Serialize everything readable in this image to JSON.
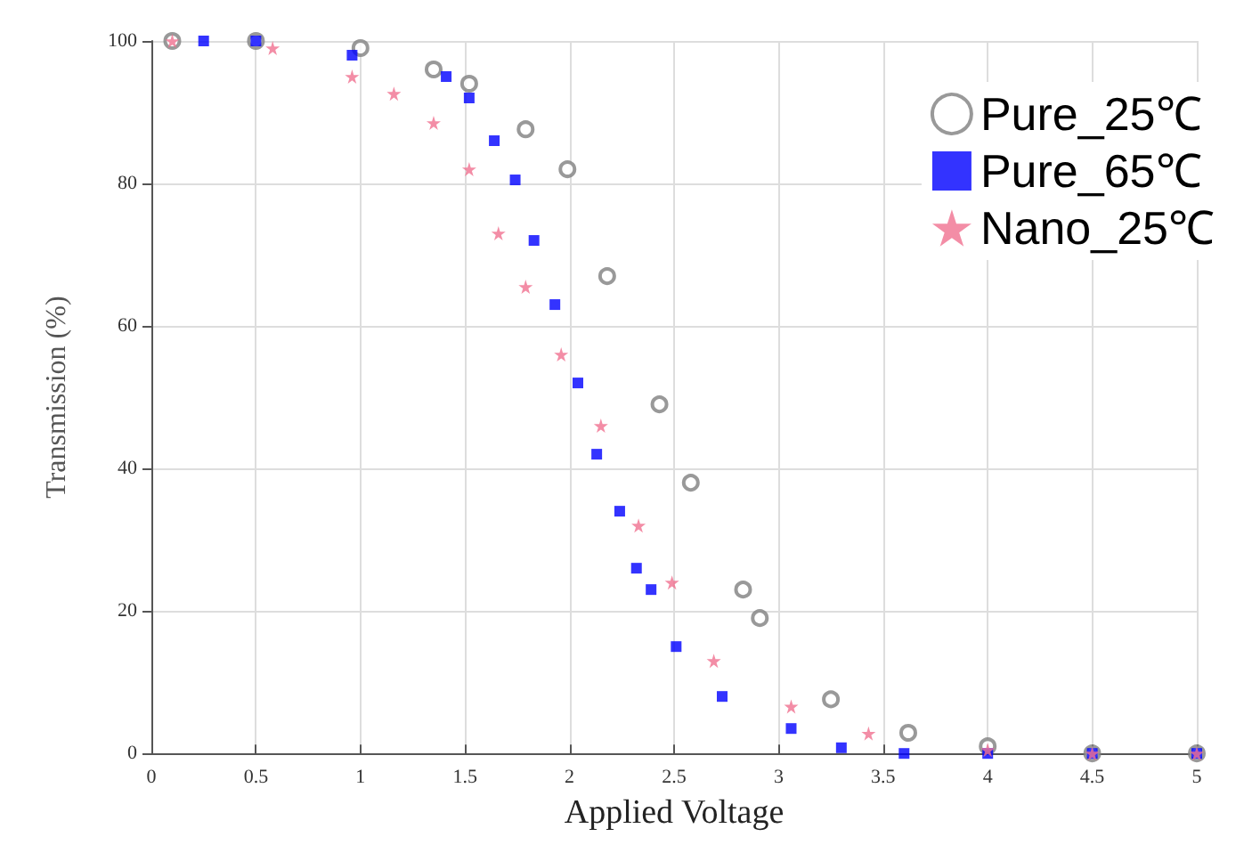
{
  "chart_data": {
    "type": "scatter",
    "xlabel": "Applied Voltage",
    "ylabel": "Transmission (%)",
    "xlim": [
      0,
      5
    ],
    "ylim": [
      0,
      100
    ],
    "xticks": [
      0,
      0.5,
      1,
      1.5,
      2,
      2.5,
      3,
      3.5,
      4,
      4.5,
      5
    ],
    "yticks": [
      0,
      20,
      40,
      60,
      80,
      100
    ],
    "grid": true,
    "legend": "top right",
    "series": [
      {
        "name": "Pure_25℃",
        "color": "#808080",
        "marker": "circle",
        "x": [
          0.1,
          0.5,
          1,
          1.35,
          1.52,
          1.79,
          1.99,
          2.18,
          2.43,
          2.58,
          2.83,
          2.91,
          3.25,
          3.62,
          4,
          4.5,
          5
        ],
        "values": [
          100,
          100,
          99,
          96,
          94,
          87.6,
          82,
          67,
          49,
          38,
          23,
          19,
          7.6,
          2.9,
          1,
          0,
          0
        ]
      },
      {
        "name": "Pure_65℃",
        "color": "#0000ff",
        "marker": "square",
        "x": [
          0.25,
          0.5,
          0.96,
          1.41,
          1.52,
          1.64,
          1.74,
          1.83,
          1.93,
          2.04,
          2.13,
          2.24,
          2.32,
          2.39,
          2.51,
          2.73,
          3.06,
          3.3,
          3.6,
          4,
          4.5,
          5
        ],
        "values": [
          100,
          100,
          98,
          95,
          92,
          86,
          80.5,
          72,
          63,
          52,
          42,
          34,
          26,
          23,
          15,
          8,
          3.5,
          0.8,
          0,
          0,
          0,
          0
        ]
      },
      {
        "name": "Nano_25℃",
        "color": "#f07090",
        "marker": "star",
        "x": [
          0.1,
          0.58,
          0.96,
          1.16,
          1.35,
          1.52,
          1.66,
          1.79,
          1.96,
          2.15,
          2.33,
          2.49,
          2.69,
          3.06,
          3.43,
          4,
          4.5,
          5
        ],
        "values": [
          100,
          99,
          95,
          92.6,
          88.5,
          82,
          73,
          65.5,
          56,
          46,
          32,
          24,
          13,
          6.6,
          2.8,
          0.5,
          0,
          0
        ]
      }
    ]
  }
}
